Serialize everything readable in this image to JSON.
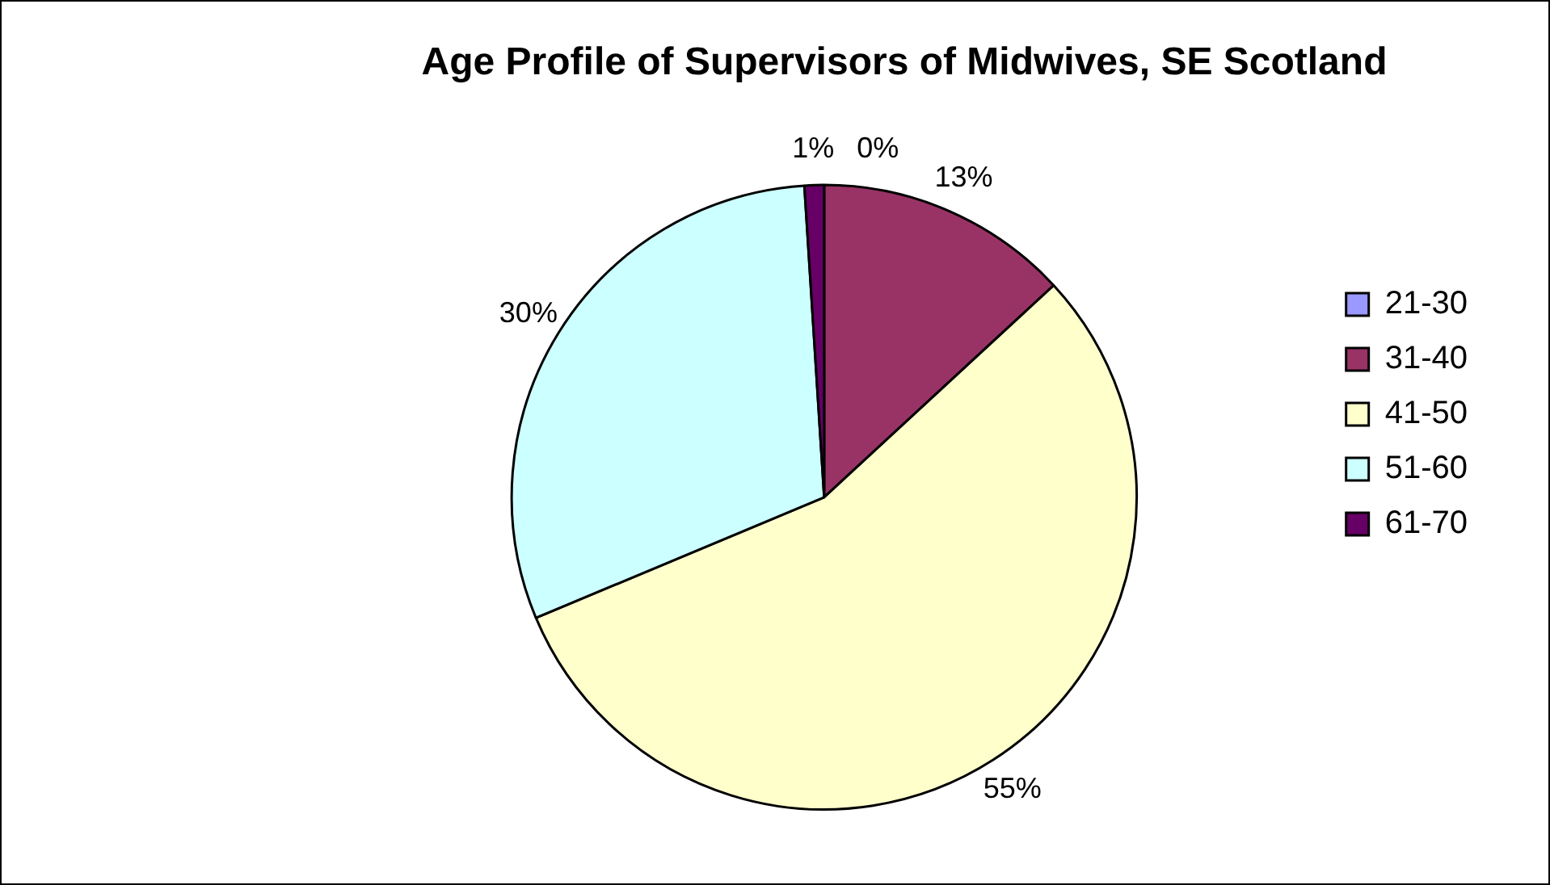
{
  "chart_data": {
    "type": "pie",
    "title": "Age Profile of Supervisors of Midwives, SE Scotland",
    "categories": [
      "21-30",
      "31-40",
      "41-50",
      "51-60",
      "61-70"
    ],
    "values": [
      0,
      13,
      55,
      30,
      1
    ],
    "colors": [
      "#9999ff",
      "#993366",
      "#ffffcc",
      "#ccffff",
      "#660066"
    ],
    "value_labels": [
      "0%",
      "13%",
      "55%",
      "30%",
      "1%"
    ],
    "legend": "right"
  }
}
